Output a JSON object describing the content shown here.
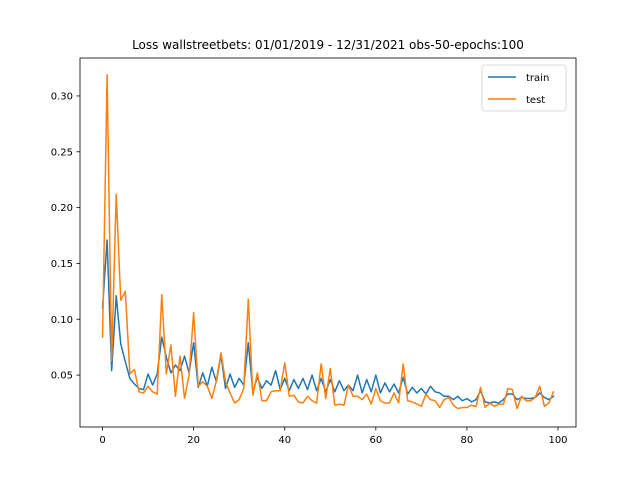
{
  "chart_data": {
    "type": "line",
    "title": "Loss wallstreetbets: 01/01/2019 - 12/31/2021  obs-50-epochs:100",
    "xlabel": "",
    "ylabel": "",
    "xlim": [
      -4.95,
      103.95
    ],
    "ylim": [
      0.0035,
      0.334
    ],
    "xticks": [
      0,
      20,
      40,
      60,
      80,
      100
    ],
    "yticks": [
      0.05,
      0.1,
      0.15,
      0.2,
      0.25,
      0.3
    ],
    "ytick_labels": [
      "0.05",
      "0.10",
      "0.15",
      "0.20",
      "0.25",
      "0.30"
    ],
    "legend_position": "upper right",
    "grid": false,
    "x": [
      0,
      1,
      2,
      3,
      4,
      5,
      6,
      7,
      8,
      9,
      10,
      11,
      12,
      13,
      14,
      15,
      16,
      17,
      18,
      19,
      20,
      21,
      22,
      23,
      24,
      25,
      26,
      27,
      28,
      29,
      30,
      31,
      32,
      33,
      34,
      35,
      36,
      37,
      38,
      39,
      40,
      41,
      42,
      43,
      44,
      45,
      46,
      47,
      48,
      49,
      50,
      51,
      52,
      53,
      54,
      55,
      56,
      57,
      58,
      59,
      60,
      61,
      62,
      63,
      64,
      65,
      66,
      67,
      68,
      69,
      70,
      71,
      72,
      73,
      74,
      75,
      76,
      77,
      78,
      79,
      80,
      81,
      82,
      83,
      84,
      85,
      86,
      87,
      88,
      89,
      90,
      91,
      92,
      93,
      94,
      95,
      96,
      97,
      98,
      99
    ],
    "series": [
      {
        "name": "train",
        "color": "#1f77b4",
        "values": [
          0.11,
          0.171,
          0.054,
          0.121,
          0.078,
          0.062,
          0.047,
          0.042,
          0.038,
          0.037,
          0.051,
          0.041,
          0.051,
          0.084,
          0.066,
          0.052,
          0.059,
          0.054,
          0.067,
          0.052,
          0.079,
          0.039,
          0.052,
          0.04,
          0.057,
          0.044,
          0.068,
          0.038,
          0.051,
          0.039,
          0.047,
          0.041,
          0.079,
          0.035,
          0.048,
          0.038,
          0.045,
          0.041,
          0.054,
          0.037,
          0.047,
          0.036,
          0.046,
          0.038,
          0.047,
          0.037,
          0.05,
          0.036,
          0.047,
          0.035,
          0.046,
          0.035,
          0.045,
          0.036,
          0.041,
          0.036,
          0.05,
          0.034,
          0.046,
          0.035,
          0.05,
          0.034,
          0.043,
          0.035,
          0.042,
          0.034,
          0.048,
          0.033,
          0.039,
          0.034,
          0.038,
          0.033,
          0.04,
          0.035,
          0.034,
          0.031,
          0.031,
          0.028,
          0.031,
          0.027,
          0.029,
          0.026,
          0.028,
          0.036,
          0.026,
          0.025,
          0.026,
          0.025,
          0.028,
          0.033,
          0.033,
          0.028,
          0.03,
          0.029,
          0.029,
          0.03,
          0.034,
          0.03,
          0.028,
          0.031
        ]
      },
      {
        "name": "test",
        "color": "#ff7f0e",
        "values": [
          0.084,
          0.319,
          0.063,
          0.212,
          0.117,
          0.125,
          0.051,
          0.055,
          0.035,
          0.034,
          0.04,
          0.035,
          0.033,
          0.122,
          0.051,
          0.077,
          0.031,
          0.067,
          0.029,
          0.05,
          0.106,
          0.04,
          0.044,
          0.04,
          0.029,
          0.045,
          0.07,
          0.044,
          0.034,
          0.025,
          0.028,
          0.038,
          0.118,
          0.032,
          0.052,
          0.027,
          0.027,
          0.035,
          0.036,
          0.036,
          0.061,
          0.031,
          0.032,
          0.026,
          0.025,
          0.031,
          0.027,
          0.025,
          0.06,
          0.029,
          0.056,
          0.023,
          0.024,
          0.023,
          0.041,
          0.031,
          0.031,
          0.028,
          0.033,
          0.024,
          0.038,
          0.027,
          0.025,
          0.025,
          0.034,
          0.025,
          0.06,
          0.027,
          0.026,
          0.024,
          0.022,
          0.033,
          0.028,
          0.027,
          0.021,
          0.028,
          0.03,
          0.023,
          0.02,
          0.021,
          0.021,
          0.023,
          0.022,
          0.039,
          0.021,
          0.025,
          0.022,
          0.024,
          0.024,
          0.038,
          0.037,
          0.02,
          0.031,
          0.027,
          0.027,
          0.03,
          0.04,
          0.022,
          0.025,
          0.035
        ]
      }
    ]
  }
}
